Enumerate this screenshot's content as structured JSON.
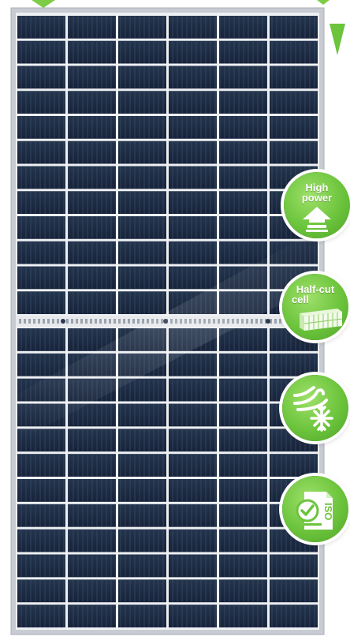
{
  "image": {
    "subject": "solar-panel",
    "panel_color": "#1c2a3e",
    "frame_color": "#c8ccd2",
    "badge_color": "#6cc43c"
  },
  "badges": [
    {
      "id": "high-power",
      "line1": "High",
      "line2": "power",
      "icon": "up-arrow-icon"
    },
    {
      "id": "half-cut",
      "line1": "Half-cut",
      "line2": "cell",
      "icon": "half-cut-cell-icon"
    },
    {
      "id": "weather",
      "line1": "",
      "line2": "",
      "icon": "wind-snow-icon"
    },
    {
      "id": "iso",
      "line1": "",
      "line2": "",
      "icon": "iso-certificate-icon",
      "stamp": "ISO"
    }
  ]
}
